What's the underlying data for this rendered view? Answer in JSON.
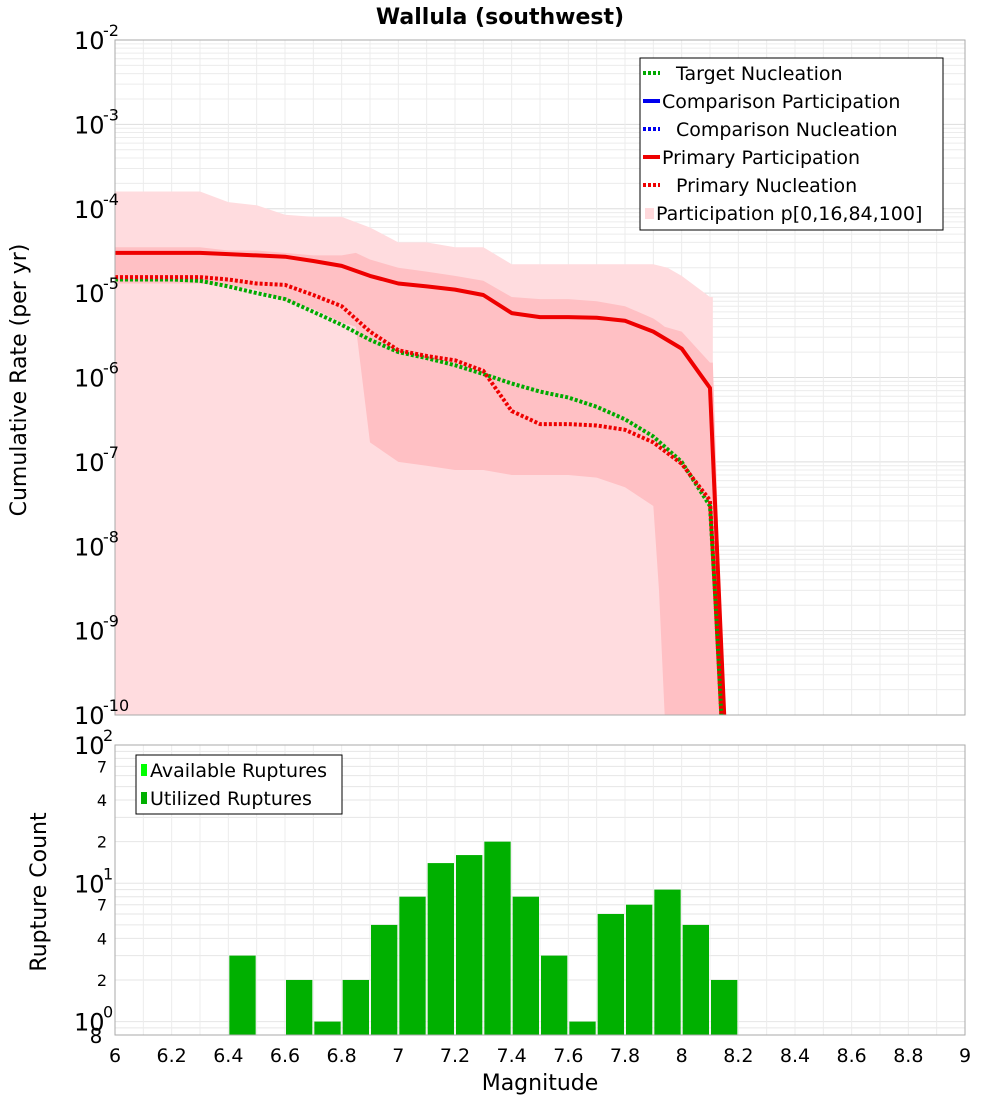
{
  "chart_data": [
    {
      "type": "line",
      "title": "Wallula (southwest)",
      "xlabel": "Magnitude",
      "ylabel": "Cumulative Rate (per yr)",
      "yscale": "log",
      "xlim": [
        6,
        9
      ],
      "ylim": [
        1e-10,
        0.01
      ],
      "y_tick_labels": [
        {
          "base": "10",
          "exp": "-2"
        },
        {
          "base": "10",
          "exp": "-3"
        },
        {
          "base": "10",
          "exp": "-4"
        },
        {
          "base": "10",
          "exp": "-5"
        },
        {
          "base": "10",
          "exp": "-6"
        },
        {
          "base": "10",
          "exp": "-7"
        },
        {
          "base": "10",
          "exp": "-8"
        },
        {
          "base": "10",
          "exp": "-9"
        },
        {
          "base": "10",
          "exp": "-10"
        }
      ],
      "legend": {
        "position": "top-right",
        "entries": [
          {
            "label": "Target Nucleation",
            "color": "#00aa00",
            "style": "dotted"
          },
          {
            "label": "Comparison Participation",
            "color": "#0000ee",
            "style": "solid"
          },
          {
            "label": "Comparison Nucleation",
            "color": "#0000ee",
            "style": "dotted"
          },
          {
            "label": "Primary Participation",
            "color": "#ee0000",
            "style": "solid"
          },
          {
            "label": "Primary Nucleation",
            "color": "#ee0000",
            "style": "dotted"
          },
          {
            "label": "Participation p[0,16,84,100]",
            "color": "#ffd9dc",
            "style": "fill"
          }
        ]
      },
      "bands": [
        {
          "name": "p0-p100",
          "color": "#ffdcdf",
          "x": [
            6.0,
            6.1,
            6.2,
            6.3,
            6.4,
            6.5,
            6.6,
            6.7,
            6.8,
            6.9,
            7.0,
            7.1,
            7.2,
            7.3,
            7.4,
            7.5,
            7.6,
            7.7,
            7.8,
            7.9,
            7.95,
            8.0,
            8.1,
            8.11
          ],
          "upper": [
            0.00016,
            0.00016,
            0.00016,
            0.00016,
            0.00012,
            0.00011,
            8.5e-05,
            8e-05,
            8e-05,
            6e-05,
            4e-05,
            4e-05,
            3.5e-05,
            3.5e-05,
            2.2e-05,
            2.2e-05,
            2.2e-05,
            2.2e-05,
            2.2e-05,
            2.2e-05,
            2e-05,
            1.6e-05,
            9e-06,
            9e-06
          ],
          "lower": [
            1e-10,
            1e-10,
            1e-10,
            1e-10,
            1e-10,
            1e-10,
            1e-10,
            1e-10,
            1e-10,
            1e-10,
            1e-10,
            1e-10,
            1e-10,
            1e-10,
            1e-10,
            1e-10,
            1e-10,
            1e-10,
            1e-10,
            1e-10,
            1e-10,
            1e-10,
            1e-10,
            1e-10
          ]
        },
        {
          "name": "p16-p84",
          "color": "#ffc0c4",
          "x": [
            6.0,
            6.3,
            6.4,
            6.5,
            6.6,
            6.7,
            6.8,
            6.85,
            6.9,
            7.0,
            7.1,
            7.2,
            7.3,
            7.4,
            7.5,
            7.6,
            7.7,
            7.8,
            7.9,
            7.92,
            7.94,
            8.0,
            8.1,
            8.11,
            8.15
          ],
          "upper": [
            3.5e-05,
            3.5e-05,
            3.2e-05,
            3.2e-05,
            3e-05,
            2.8e-05,
            2.8e-05,
            3e-05,
            2.5e-05,
            2e-05,
            1.8e-05,
            1.6e-05,
            1.4e-05,
            9e-06,
            8.5e-06,
            8.5e-06,
            8e-06,
            7e-06,
            5e-06,
            4.5e-06,
            4e-06,
            3.5e-06,
            1.5e-06,
            1.5e-06,
            1e-10
          ],
          "lower": [
            1.3e-05,
            1.3e-05,
            1.25e-05,
            1.1e-05,
            8e-06,
            6.5e-06,
            4.5e-06,
            4e-06,
            1.7e-07,
            1e-07,
            9e-08,
            8e-08,
            8e-08,
            7e-08,
            7e-08,
            7e-08,
            6.5e-08,
            5e-08,
            3e-08,
            3e-09,
            1e-10,
            1e-10,
            1e-10,
            1e-10,
            1e-10
          ]
        }
      ],
      "series": [
        {
          "name": "Target Nucleation",
          "color": "#00aa00",
          "style": "dotted",
          "x": [
            6.0,
            6.1,
            6.2,
            6.3,
            6.4,
            6.5,
            6.6,
            6.7,
            6.8,
            6.9,
            7.0,
            7.1,
            7.2,
            7.3,
            7.4,
            7.5,
            7.6,
            7.7,
            7.8,
            7.9,
            8.0,
            8.1,
            8.12,
            8.14
          ],
          "y": [
            1.45e-05,
            1.45e-05,
            1.45e-05,
            1.4e-05,
            1.2e-05,
            1e-05,
            8.5e-06,
            6e-06,
            4.2e-06,
            2.8e-06,
            2e-06,
            1.7e-06,
            1.4e-06,
            1.1e-06,
            8.5e-07,
            6.8e-07,
            5.8e-07,
            4.5e-07,
            3.2e-07,
            2e-07,
            1e-07,
            3e-08,
            2e-09,
            1e-10
          ]
        },
        {
          "name": "Primary Participation",
          "color": "#ee0000",
          "style": "solid",
          "x": [
            6.0,
            6.1,
            6.2,
            6.3,
            6.4,
            6.5,
            6.6,
            6.7,
            6.8,
            6.9,
            7.0,
            7.1,
            7.2,
            7.3,
            7.4,
            7.5,
            7.6,
            7.7,
            7.8,
            7.9,
            8.0,
            8.1,
            8.15
          ],
          "y": [
            3e-05,
            3e-05,
            3e-05,
            3e-05,
            2.9e-05,
            2.8e-05,
            2.7e-05,
            2.4e-05,
            2.1e-05,
            1.6e-05,
            1.3e-05,
            1.2e-05,
            1.1e-05,
            9.5e-06,
            5.8e-06,
            5.2e-06,
            5.2e-06,
            5.1e-06,
            4.7e-06,
            3.5e-06,
            2.2e-06,
            7.5e-07,
            1e-10
          ]
        },
        {
          "name": "Primary Nucleation",
          "color": "#ee0000",
          "style": "dotted",
          "x": [
            6.0,
            6.1,
            6.2,
            6.3,
            6.4,
            6.5,
            6.6,
            6.7,
            6.8,
            6.9,
            7.0,
            7.1,
            7.2,
            7.3,
            7.4,
            7.5,
            7.6,
            7.7,
            7.8,
            7.9,
            8.0,
            8.1,
            8.12,
            8.14
          ],
          "y": [
            1.55e-05,
            1.55e-05,
            1.55e-05,
            1.55e-05,
            1.45e-05,
            1.3e-05,
            1.25e-05,
            9.5e-06,
            7e-06,
            3.5e-06,
            2.1e-06,
            1.8e-06,
            1.6e-06,
            1.2e-06,
            4e-07,
            2.8e-07,
            2.8e-07,
            2.7e-07,
            2.4e-07,
            1.7e-07,
            9.5e-08,
            3.5e-08,
            2e-09,
            1e-10
          ]
        }
      ]
    },
    {
      "type": "bar",
      "xlabel": "Magnitude",
      "ylabel": "Rupture Count",
      "yscale": "log",
      "xlim": [
        6,
        9
      ],
      "ylim": [
        0.8,
        100
      ],
      "bar_width": 0.1,
      "x_tick_labels": [
        "6",
        "6.2",
        "6.4",
        "6.6",
        "6.8",
        "7",
        "7.2",
        "7.4",
        "7.6",
        "7.8",
        "8",
        "8.2",
        "8.4",
        "8.6",
        "8.8",
        "9"
      ],
      "y_major_labels": [
        {
          "value": 100,
          "base": "10",
          "exp": "2"
        },
        {
          "value": 10,
          "base": "10",
          "exp": "1"
        },
        {
          "value": 1,
          "base": "10",
          "exp": "0"
        }
      ],
      "y_minor_labels": [
        {
          "value": 70,
          "label": "7"
        },
        {
          "value": 40,
          "label": "4"
        },
        {
          "value": 20,
          "label": "2"
        },
        {
          "value": 7,
          "label": "7"
        },
        {
          "value": 4,
          "label": "4"
        },
        {
          "value": 2,
          "label": "2"
        },
        {
          "value": 0.8,
          "label": "8"
        }
      ],
      "legend": {
        "position": "top-left",
        "entries": [
          {
            "label": "Available Ruptures",
            "color": "#00ff00"
          },
          {
            "label": "Utilized Ruptures",
            "color": "#00b000"
          }
        ]
      },
      "series": [
        {
          "name": "Utilized Ruptures",
          "color": "#00b000",
          "x": [
            6.45,
            6.65,
            6.75,
            6.85,
            6.95,
            7.05,
            7.15,
            7.25,
            7.35,
            7.45,
            7.55,
            7.65,
            7.75,
            7.85,
            7.95,
            8.05,
            8.15
          ],
          "values": [
            3,
            2,
            1,
            2,
            5,
            8,
            14,
            16,
            20,
            8,
            3,
            1,
            6,
            7,
            9,
            5,
            2
          ]
        }
      ]
    }
  ]
}
